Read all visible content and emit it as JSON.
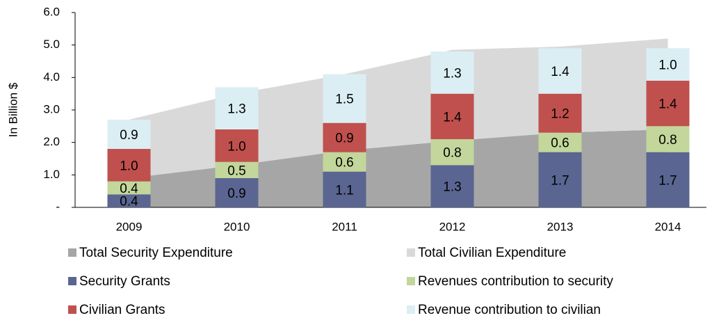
{
  "chart_data": {
    "type": "bar",
    "y_label": "In Billion $",
    "categories": [
      "2009",
      "2010",
      "2011",
      "2012",
      "2013",
      "2014"
    ],
    "series": [
      {
        "name": "Total Security Expenditure",
        "type": "area",
        "color": "#a6a6a6",
        "values": [
          0.9,
          1.3,
          1.75,
          2.05,
          2.3,
          2.4
        ]
      },
      {
        "name": "Total Civilian Expenditure",
        "type": "area",
        "color": "#d9d9d9",
        "values": [
          1.8,
          2.2,
          2.35,
          2.8,
          2.65,
          2.8
        ]
      },
      {
        "name": "Security Grants",
        "type": "bar",
        "color": "#5a6591",
        "values": [
          0.4,
          0.9,
          1.1,
          1.3,
          1.7,
          1.7
        ]
      },
      {
        "name": "Revenues contribution to security",
        "type": "bar",
        "color": "#c3d69b",
        "values": [
          0.4,
          0.5,
          0.6,
          0.8,
          0.6,
          0.8
        ]
      },
      {
        "name": "Civilian Grants",
        "type": "bar",
        "color": "#c0504d",
        "values": [
          1.0,
          1.0,
          0.9,
          1.4,
          1.2,
          1.4
        ]
      },
      {
        "name": "Revenue contribution to civilian",
        "type": "bar",
        "color": "#dbeef3",
        "values": [
          0.9,
          1.3,
          1.5,
          1.3,
          1.4,
          1.0
        ]
      }
    ],
    "value_labels": [
      null,
      null,
      [
        "0.4",
        "0.9",
        "1.1",
        "1.3",
        "1.7",
        "1.7"
      ],
      [
        "0.4",
        "0.5",
        "0.6",
        "0.8",
        "0.6",
        "0.8"
      ],
      [
        "1.0",
        "1.0",
        "0.9",
        "1.4",
        "1.2",
        "1.4"
      ],
      [
        "0.9",
        "1.3",
        "1.5",
        "1.3",
        "1.4",
        "1.0"
      ]
    ],
    "ylim": [
      0,
      6
    ],
    "yticks": [
      {
        "value": 0,
        "label": "-"
      },
      {
        "value": 1,
        "label": "1.0"
      },
      {
        "value": 2,
        "label": "2.0"
      },
      {
        "value": 3,
        "label": "3.0"
      },
      {
        "value": 4,
        "label": "4.0"
      },
      {
        "value": 5,
        "label": "5.0"
      },
      {
        "value": 6,
        "label": "6.0"
      }
    ],
    "legend": "bottom"
  }
}
